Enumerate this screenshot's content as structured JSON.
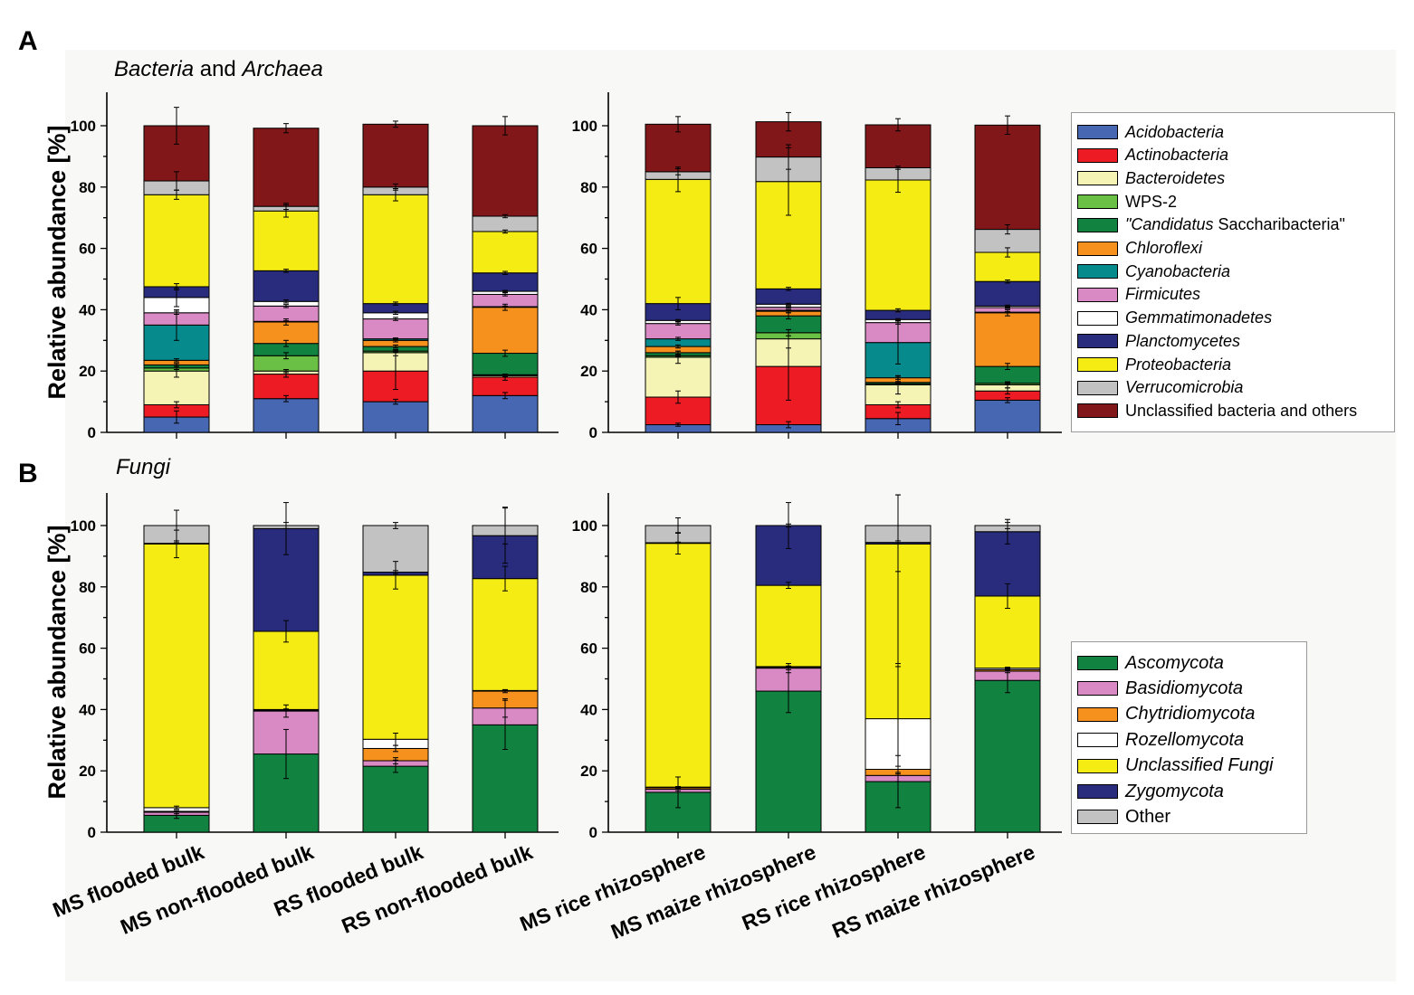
{
  "panel_labels": {
    "a": "A",
    "b": "B"
  },
  "titles": {
    "bacteria_italic_1": "Bacteria",
    "bacteria_and": " and ",
    "bacteria_italic_2": "Archaea",
    "fungi": "Fungi"
  },
  "ylabel": "Relative abundance [%]",
  "yticks": [
    "0",
    "20",
    "40",
    "60",
    "80",
    "100"
  ],
  "categories": [
    "MS flooded bulk",
    "MS non-flooded bulk",
    "RS flooded bulk",
    "RS non-flooded bulk",
    "MS rice rhizosphere",
    "MS maize rhizosphere",
    "RS rice rhizosphere",
    "RS maize rhizosphere"
  ],
  "legend_bacteria": [
    {
      "pre": "",
      "it": "Acidobacteria",
      "post": ""
    },
    {
      "pre": "",
      "it": "Actinobacteria",
      "post": ""
    },
    {
      "pre": "",
      "it": "Bacteroidetes",
      "post": ""
    },
    {
      "pre": "WPS-2",
      "it": "",
      "post": ""
    },
    {
      "pre": "",
      "it": "\"Candidatus",
      "post": " Saccharibacteria\""
    },
    {
      "pre": "",
      "it": "Chloroflexi",
      "post": ""
    },
    {
      "pre": "",
      "it": "Cyanobacteria",
      "post": ""
    },
    {
      "pre": "",
      "it": "Firmicutes",
      "post": ""
    },
    {
      "pre": "",
      "it": "Gemmatimonadetes",
      "post": ""
    },
    {
      "pre": "",
      "it": "Planctomycetes",
      "post": ""
    },
    {
      "pre": "",
      "it": "Proteobacteria",
      "post": ""
    },
    {
      "pre": "",
      "it": "Verrucomicrobia",
      "post": ""
    },
    {
      "pre": "Unclassified bacteria and others",
      "it": "",
      "post": ""
    }
  ],
  "legend_fungi": [
    {
      "pre": "",
      "it": "Ascomycota",
      "post": ""
    },
    {
      "pre": "",
      "it": "Basidiomycota",
      "post": ""
    },
    {
      "pre": "",
      "it": "Chytridiomycota",
      "post": ""
    },
    {
      "pre": "",
      "it": "Rozellomycota",
      "post": ""
    },
    {
      "pre": "",
      "it": "Unclassified Fungi",
      "post": ""
    },
    {
      "pre": "",
      "it": "Zygomycota",
      "post": ""
    },
    {
      "pre": "Other",
      "it": "",
      "post": ""
    }
  ],
  "chart_data": [
    {
      "type": "bar",
      "stacked": true,
      "title": "Bacteria and Archaea",
      "ylabel": "Relative abundance [%]",
      "ylim": [
        0,
        110
      ],
      "categories": [
        "MS flooded bulk",
        "MS non-flooded bulk",
        "RS flooded bulk",
        "RS non-flooded bulk",
        "MS rice rhizosphere",
        "MS maize rhizosphere",
        "RS rice rhizosphere",
        "RS maize rhizosphere"
      ],
      "series": [
        {
          "name": "Acidobacteria",
          "color": "#4767b2",
          "values": [
            5,
            11,
            10,
            12,
            2.5,
            2.5,
            4.5,
            10.5
          ],
          "errors": [
            2,
            1,
            0.8,
            1,
            0.5,
            1,
            2,
            0.8
          ]
        },
        {
          "name": "Actinobacteria",
          "color": "#ed1c24",
          "values": [
            4,
            8,
            10,
            6,
            9,
            19,
            4.5,
            3
          ],
          "errors": [
            1,
            1,
            6,
            1,
            2,
            11,
            1,
            1
          ]
        },
        {
          "name": "Bacteroidetes",
          "color": "#f5f4b4",
          "values": [
            11,
            1,
            6,
            0.5,
            13,
            9,
            6.5,
            2
          ],
          "errors": [
            2,
            0.5,
            1,
            0.3,
            2,
            3,
            3,
            1
          ]
        },
        {
          "name": "WPS-2",
          "color": "#6abf45",
          "values": [
            1,
            5,
            0.5,
            0.3,
            0.5,
            2,
            0.3,
            0.5
          ],
          "errors": [
            0.5,
            1,
            0.3,
            0.2,
            0.3,
            1,
            0.2,
            0.3
          ]
        },
        {
          "name": "\"Candidatus Saccharibacteria\"",
          "color": "#11823f",
          "values": [
            1,
            4,
            1.5,
            7,
            1,
            5.5,
            0.5,
            5.5
          ],
          "errors": [
            0.5,
            1,
            0.5,
            1,
            0.5,
            1,
            0.3,
            1
          ]
        },
        {
          "name": "Chloroflexi",
          "color": "#f7911e",
          "values": [
            1.5,
            7,
            2,
            15,
            2,
            1.5,
            1.5,
            17.5
          ],
          "errors": [
            0.5,
            1,
            0.5,
            1,
            0.5,
            0.5,
            0.5,
            1
          ]
        },
        {
          "name": "Cyanobacteria",
          "color": "#078a8c",
          "values": [
            11.5,
            0.2,
            0.5,
            0.2,
            2.5,
            0.3,
            11.5,
            0.2
          ],
          "errors": [
            5,
            0.2,
            0.3,
            0.2,
            0.5,
            0.2,
            7,
            0.2
          ]
        },
        {
          "name": "Firmicutes",
          "color": "#d98ac4",
          "values": [
            4,
            5,
            6.5,
            4,
            5,
            1,
            6.5,
            1.5
          ],
          "errors": [
            0.5,
            0.5,
            0.5,
            0.5,
            0.5,
            0.3,
            0.5,
            0.3
          ]
        },
        {
          "name": "Gemmatimonadetes",
          "color": "#ffffff",
          "values": [
            5,
            1.5,
            2,
            1,
            1,
            1,
            1,
            0.5
          ],
          "errors": [
            3,
            0.5,
            0.5,
            0.3,
            0.3,
            0.3,
            0.3,
            0.3
          ]
        },
        {
          "name": "Planctomycetes",
          "color": "#292c7c",
          "values": [
            3.5,
            10,
            3,
            6,
            5.5,
            5,
            3,
            8
          ],
          "errors": [
            1,
            0.5,
            0.5,
            0.5,
            2,
            0.5,
            0.5,
            0.5
          ]
        },
        {
          "name": "Proteobacteria",
          "color": "#f5ec14",
          "values": [
            30,
            19.5,
            35.5,
            13.5,
            40.5,
            35,
            42.5,
            9.5
          ],
          "errors": [
            1.5,
            2,
            2,
            0.5,
            4,
            11,
            4,
            1.5
          ]
        },
        {
          "name": "Verrucomicrobia",
          "color": "#c2c2c2",
          "values": [
            4.5,
            1.5,
            2.5,
            5,
            2.5,
            8,
            4,
            7.5
          ],
          "errors": [
            3,
            1,
            1,
            0.5,
            1,
            4,
            0.5,
            1.5
          ]
        },
        {
          "name": "Unclassified bacteria and others",
          "color": "#821719",
          "values": [
            18,
            25.5,
            20.5,
            29.5,
            15.5,
            11.5,
            14,
            34
          ],
          "errors": [
            6,
            1.5,
            1,
            3,
            2.5,
            3,
            2,
            3
          ]
        }
      ]
    },
    {
      "type": "bar",
      "stacked": true,
      "title": "Fungi",
      "ylabel": "Relative abundance [%]",
      "ylim": [
        0,
        110
      ],
      "categories": [
        "MS flooded bulk",
        "MS non-flooded bulk",
        "RS flooded bulk",
        "RS non-flooded bulk",
        "MS rice rhizosphere",
        "MS maize rhizosphere",
        "RS rice rhizosphere",
        "RS maize rhizosphere"
      ],
      "series": [
        {
          "name": "Ascomycota",
          "color": "#11823f",
          "values": [
            5.5,
            25.5,
            21.5,
            35,
            13,
            46,
            16.5,
            49.5
          ],
          "errors": [
            1,
            8,
            2,
            8,
            5,
            7,
            8.5,
            4
          ]
        },
        {
          "name": "Basidiomycota",
          "color": "#d98ac4",
          "values": [
            1,
            14,
            1.8,
            5.5,
            1,
            7.5,
            2,
            3
          ],
          "errors": [
            0.5,
            2,
            1,
            3,
            0.5,
            1.5,
            2,
            0.5
          ]
        },
        {
          "name": "Chytridiomycota",
          "color": "#f7911e",
          "values": [
            0.3,
            0.3,
            4,
            5.5,
            0.5,
            0.3,
            2,
            0.5
          ],
          "errors": [
            0.2,
            0.2,
            1,
            0.5,
            0.3,
            0.2,
            1,
            0.3
          ]
        },
        {
          "name": "Rozellomycota",
          "color": "#ffffff",
          "values": [
            1.2,
            0.2,
            3,
            0.2,
            0.2,
            0.2,
            16.5,
            0.5
          ],
          "errors": [
            0.5,
            0.2,
            2,
            0.2,
            0.2,
            0.2,
            18,
            0.3
          ]
        },
        {
          "name": "Unclassified Fungi",
          "color": "#f5ec14",
          "values": [
            86,
            25.5,
            53.5,
            36.5,
            79.5,
            26.5,
            57,
            23.5
          ],
          "errors": [
            4.5,
            3.5,
            4.5,
            4,
            3.5,
            1,
            40,
            4
          ]
        },
        {
          "name": "Zygomycota",
          "color": "#292c7c",
          "values": [
            0.2,
            33.5,
            1,
            14,
            0.2,
            19.5,
            0.5,
            21
          ],
          "errors": [
            0.2,
            8.5,
            0.5,
            9,
            0.2,
            7.5,
            0.5,
            4
          ]
        },
        {
          "name": "Other",
          "color": "#c2c2c2",
          "values": [
            5.8,
            1,
            15.2,
            3.3,
            5.6,
            0,
            5.5,
            2
          ],
          "errors": [
            5,
            1,
            1,
            6,
            2.5,
            0.5,
            15,
            1
          ]
        }
      ]
    }
  ]
}
